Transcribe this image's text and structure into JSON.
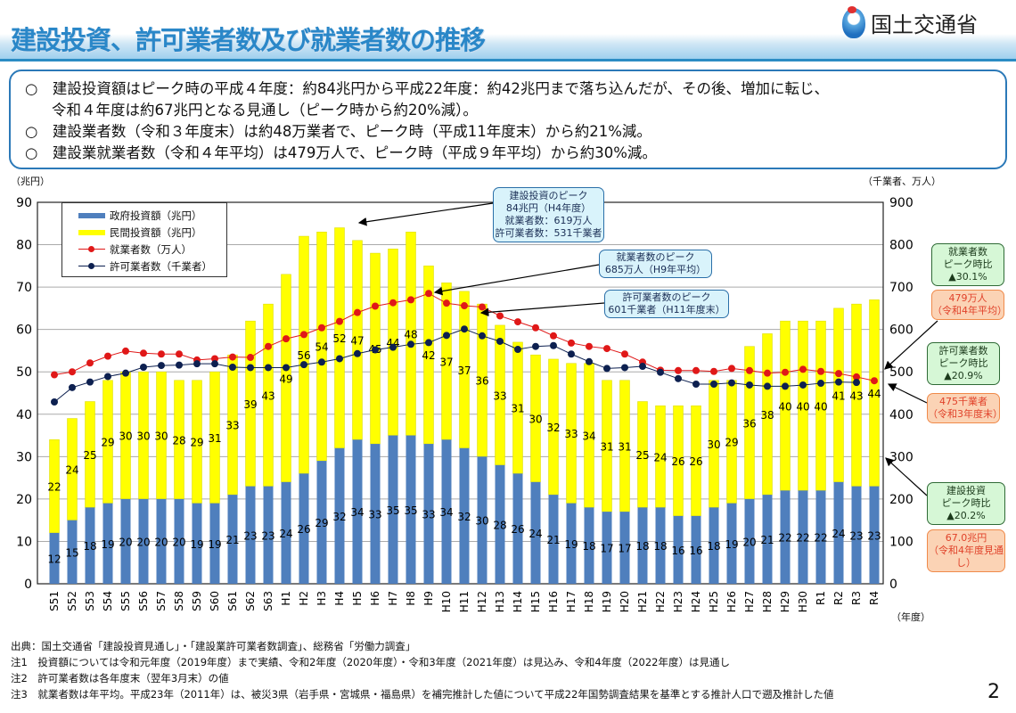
{
  "header": {
    "title": "建設投資、許可業者数及び就業者数の推移",
    "logo_text": "国土交通省"
  },
  "summary": {
    "lines": [
      "○　建設投資額はピーク時の平成４年度：約84兆円から平成22年度：約42兆円まで落ち込んだが、その後、増加に転じ、",
      "令和４年度は約67兆円となる見通し（ピーク時から約20%減）。",
      "○　建設業者数（令和３年度末）は約48万業者で、ピーク時（平成11年度末）から約21%減。",
      "○　建設業就業者数（令和４年平均）は479万人で、ピーク時（平成９年平均）から約30%減。"
    ]
  },
  "chart_data": {
    "type": "bar+line",
    "left_unit": "（兆円）",
    "right_unit": "（千業者、万人）",
    "x_unit": "（年度）",
    "ylim": [
      0,
      90
    ],
    "y2lim": [
      0,
      900
    ],
    "yticks": [
      0,
      10,
      20,
      30,
      40,
      50,
      60,
      70,
      80,
      90
    ],
    "y2ticks": [
      0,
      100,
      200,
      300,
      400,
      500,
      600,
      700,
      800,
      900
    ],
    "grid": true,
    "legend_position": "top-left",
    "categories": [
      "S51",
      "S52",
      "S53",
      "S54",
      "S55",
      "S56",
      "S57",
      "S58",
      "S59",
      "S60",
      "S61",
      "S62",
      "S63",
      "H1",
      "H2",
      "H3",
      "H4",
      "H5",
      "H6",
      "H7",
      "H8",
      "H9",
      "H10",
      "H11",
      "H12",
      "H13",
      "H14",
      "H15",
      "H16",
      "H17",
      "H18",
      "H19",
      "H20",
      "H21",
      "H22",
      "H23",
      "H24",
      "H25",
      "H26",
      "H27",
      "H28",
      "H29",
      "H30",
      "R1",
      "R2",
      "R3",
      "R4"
    ],
    "series": [
      {
        "name": "政府投資額（兆円）",
        "type": "bar",
        "stack": true,
        "color": "#4f7fbd",
        "values": [
          12,
          15,
          18,
          19,
          20,
          20,
          20,
          20,
          19,
          19,
          21,
          23,
          23,
          24,
          26,
          29,
          32,
          34,
          33,
          35,
          35,
          33,
          34,
          32,
          30,
          28,
          26,
          24,
          21,
          19,
          18,
          17,
          17,
          18,
          18,
          16,
          16,
          18,
          19,
          20,
          21,
          22,
          22,
          22,
          24,
          23,
          23
        ]
      },
      {
        "name": "民間投資額（兆円）",
        "type": "bar",
        "stack": true,
        "color": "#ffff00",
        "values": [
          22,
          24,
          25,
          29,
          30,
          30,
          30,
          28,
          29,
          31,
          33,
          39,
          43,
          49,
          56,
          54,
          52,
          47,
          45,
          44,
          48,
          42,
          37,
          37,
          36,
          33,
          31,
          30,
          32,
          33,
          34,
          31,
          31,
          25,
          24,
          26,
          26,
          30,
          29,
          36,
          38,
          40,
          40,
          40,
          41,
          43,
          44
        ]
      },
      {
        "name": "就業者数（万人）",
        "type": "line",
        "axis": "right",
        "color": "#e01818",
        "values": [
          493,
          500,
          521,
          537,
          549,
          544,
          542,
          542,
          528,
          531,
          535,
          534,
          560,
          578,
          588,
          604,
          619,
          640,
          655,
          663,
          670,
          685,
          662,
          656,
          653,
          632,
          618,
          604,
          585,
          568,
          560,
          555,
          542,
          523,
          504,
          503,
          503,
          501,
          508,
          503,
          497,
          499,
          506,
          501,
          496,
          488,
          479
        ]
      },
      {
        "name": "許可業者数（千業者）",
        "type": "line",
        "axis": "right",
        "color": "#0d2050",
        "values": [
          429,
          463,
          476,
          489,
          497,
          511,
          515,
          516,
          519,
          519,
          511,
          510,
          510,
          510,
          517,
          523,
          531,
          543,
          552,
          558,
          565,
          569,
          586,
          601,
          585,
          572,
          553,
          560,
          562,
          542,
          524,
          508,
          510,
          513,
          499,
          484,
          471,
          471,
          474,
          469,
          466,
          466,
          469,
          473,
          476,
          475,
          null
        ]
      }
    ],
    "annotations": {
      "peak_invest": [
        "建設投資のピーク",
        "84兆円（H4年度）",
        "就業者数：619万人",
        "許可業者数：531千業者"
      ],
      "peak_workers": [
        "就業者数のピーク",
        "685万人（H9年平均）"
      ],
      "peak_permits": [
        "許可業者数のピーク",
        "601千業者（H11年度末）"
      ],
      "workers_ratio": [
        "就業者数",
        "ピーク時比",
        "▲30.1%"
      ],
      "workers_now": [
        "479万人",
        "（令和4年平均）"
      ],
      "permits_ratio": [
        "許可業者数",
        "ピーク時比",
        "▲20.9%"
      ],
      "permits_now": [
        "475千業者",
        "（令和3年度末）"
      ],
      "invest_ratio": [
        "建設投資",
        "ピーク時比",
        "▲20.2%"
      ],
      "invest_now": [
        "67.0兆円",
        "（令和4年度見通し）"
      ]
    }
  },
  "footer": {
    "lines": [
      "出典：国土交通省「建設投資見通し」・「建設業許可業者数調査」、総務省「労働力調査」",
      "注1　投資額については令和元年度（2019年度）まで実績、令和2年度（2020年度）・令和3年度（2021年度）は見込み、令和4年度（2022年度）は見通し",
      "注2　許可業者数は各年度末（翌年3月末）の値",
      "注3　就業者数は年平均。平成23年（2011年）は、被災3県（岩手県・宮城県・福島県）を補完推計した値について平成22年国勢調査結果を基準とする推計人口で遡及推計した値"
    ],
    "page_number": "2"
  }
}
